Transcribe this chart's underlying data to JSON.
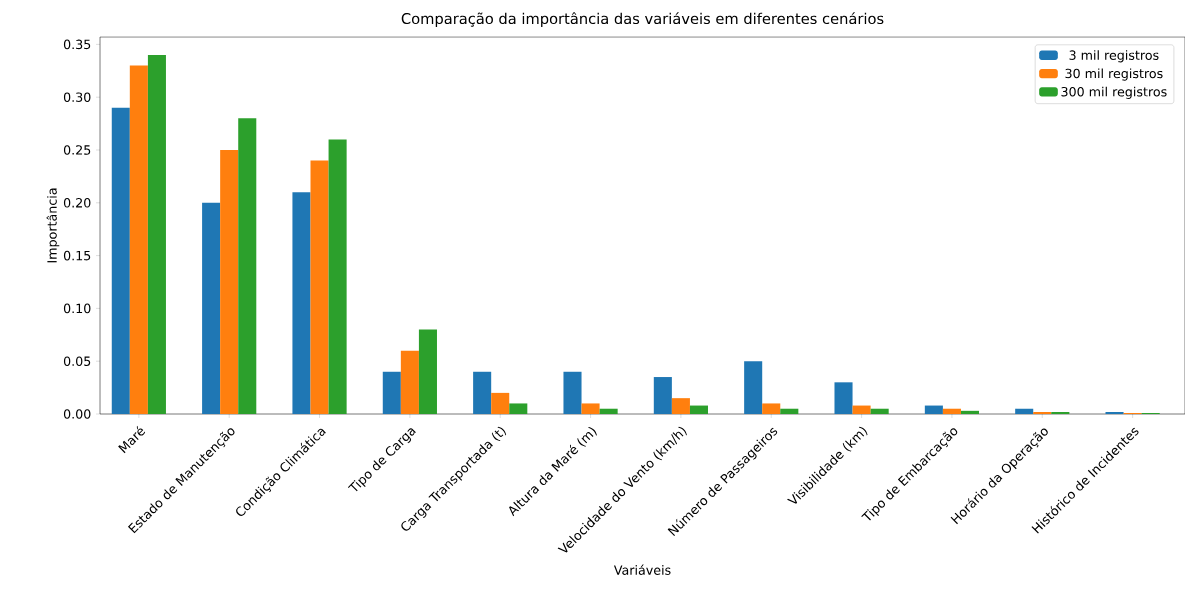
{
  "chart_data": {
    "type": "bar",
    "title": "Comparação da importância das variáveis em diferentes cenários",
    "xlabel": "Variáveis",
    "ylabel": "Importância",
    "categories": [
      "Maré",
      "Estado de Manutenção",
      "Condição Climática",
      "Tipo de Carga",
      "Carga Transportada (t)",
      "Altura da Maré (m)",
      "Velocidade do Vento (km/h)",
      "Número de Passageiros",
      "Visibilidade (km)",
      "Tipo de Embarcação",
      "Horário da Operação",
      "Histórico de Incidentes"
    ],
    "series": [
      {
        "name": "3 mil registros",
        "color": "#1f77b4",
        "values": [
          0.29,
          0.2,
          0.21,
          0.04,
          0.04,
          0.04,
          0.035,
          0.05,
          0.03,
          0.008,
          0.005,
          0.002
        ]
      },
      {
        "name": "30 mil registros",
        "color": "#ff7f0e",
        "values": [
          0.33,
          0.25,
          0.24,
          0.06,
          0.02,
          0.01,
          0.015,
          0.01,
          0.008,
          0.005,
          0.002,
          0.001
        ]
      },
      {
        "name": "300 mil registros",
        "color": "#2ca02c",
        "values": [
          0.34,
          0.28,
          0.26,
          0.08,
          0.01,
          0.005,
          0.008,
          0.005,
          0.005,
          0.003,
          0.002,
          0.001
        ]
      }
    ],
    "ylim": [
      0,
      0.357
    ],
    "yticks": [
      {
        "value": 0,
        "label": "0.00"
      },
      {
        "value": 0.05,
        "label": "0.05"
      },
      {
        "value": 0.1,
        "label": "0.10"
      },
      {
        "value": 0.15,
        "label": "0.15"
      },
      {
        "value": 0.2,
        "label": "0.20"
      },
      {
        "value": 0.25,
        "label": "0.25"
      },
      {
        "value": 0.3,
        "label": "0.30"
      },
      {
        "value": 0.35,
        "label": "0.35"
      }
    ],
    "legend": "top right",
    "grid": false
  }
}
